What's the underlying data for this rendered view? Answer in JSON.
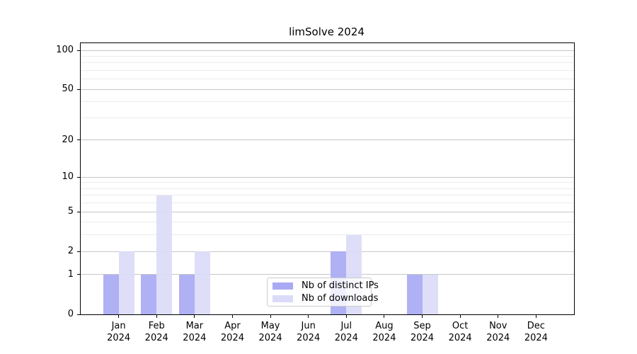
{
  "figure": {
    "title": "limSolve 2024"
  },
  "chart_data": {
    "type": "bar",
    "title": "limSolve 2024",
    "categories": [
      {
        "month": "Jan",
        "year": "2024"
      },
      {
        "month": "Feb",
        "year": "2024"
      },
      {
        "month": "Mar",
        "year": "2024"
      },
      {
        "month": "Apr",
        "year": "2024"
      },
      {
        "month": "May",
        "year": "2024"
      },
      {
        "month": "Jun",
        "year": "2024"
      },
      {
        "month": "Jul",
        "year": "2024"
      },
      {
        "month": "Aug",
        "year": "2024"
      },
      {
        "month": "Sep",
        "year": "2024"
      },
      {
        "month": "Oct",
        "year": "2024"
      },
      {
        "month": "Nov",
        "year": "2024"
      },
      {
        "month": "Dec",
        "year": "2024"
      }
    ],
    "series": [
      {
        "name": "Nb of distinct IPs",
        "color": "#a9a9f4",
        "values": [
          1,
          1,
          1,
          0,
          0,
          0,
          2,
          0,
          1,
          0,
          0,
          0
        ]
      },
      {
        "name": "Nb of downloads",
        "color": "#dbdbf9",
        "values": [
          2,
          7,
          2,
          0,
          0,
          0,
          3,
          0,
          1,
          0,
          0,
          0
        ]
      }
    ],
    "xlabel": "",
    "ylabel": "",
    "y_axis": {
      "scale": "log1p",
      "ticks": [
        0,
        1,
        2,
        5,
        10,
        20,
        50,
        100
      ],
      "minor_gridlines": [
        3,
        4,
        6,
        7,
        8,
        9,
        30,
        40,
        60,
        70,
        80,
        90
      ],
      "min": 0,
      "max": 100
    },
    "grid": "on",
    "legend_position": "lower center",
    "colors": {
      "major_grid": "#c6c6c6",
      "minor_grid": "#ececec",
      "axis": "#000000",
      "background": "#ffffff"
    }
  }
}
